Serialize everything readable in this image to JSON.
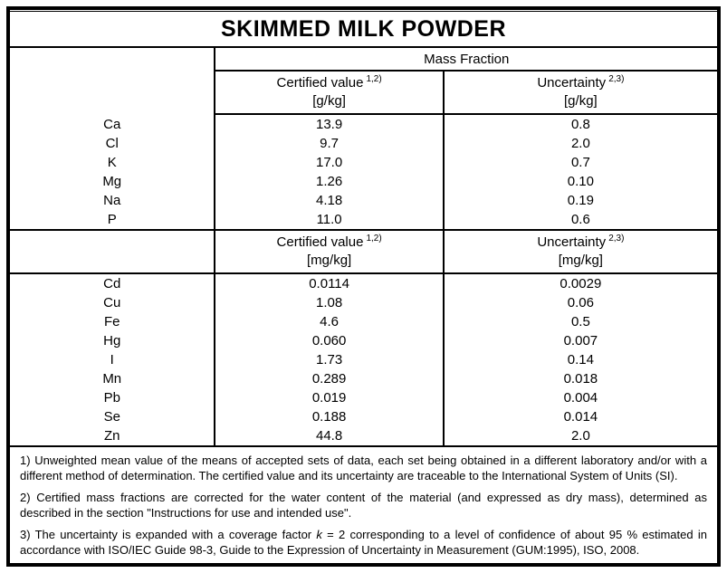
{
  "title": "SKIMMED MILK POWDER",
  "table": {
    "group_header": "Mass Fraction",
    "sections": [
      {
        "certified": {
          "label": "Certified value",
          "sup": "1,2)",
          "unit": "[g/kg]"
        },
        "uncertainty": {
          "label": "Uncertainty",
          "sup": "2,3)",
          "unit": "[g/kg]"
        },
        "rows": [
          {
            "element": "Ca",
            "certified": "13.9",
            "uncertainty": "0.8"
          },
          {
            "element": "Cl",
            "certified": "9.7",
            "uncertainty": "2.0"
          },
          {
            "element": "K",
            "certified": "17.0",
            "uncertainty": "0.7"
          },
          {
            "element": "Mg",
            "certified": "1.26",
            "uncertainty": "0.10"
          },
          {
            "element": "Na",
            "certified": "4.18",
            "uncertainty": "0.19"
          },
          {
            "element": "P",
            "certified": "11.0",
            "uncertainty": "0.6"
          }
        ]
      },
      {
        "certified": {
          "label": "Certified value",
          "sup": "1,2)",
          "unit": "[mg/kg]"
        },
        "uncertainty": {
          "label": "Uncertainty",
          "sup": "2,3)",
          "unit": "[mg/kg]"
        },
        "rows": [
          {
            "element": "Cd",
            "certified": "0.0114",
            "uncertainty": "0.0029"
          },
          {
            "element": "Cu",
            "certified": "1.08",
            "uncertainty": "0.06"
          },
          {
            "element": "Fe",
            "certified": "4.6",
            "uncertainty": "0.5"
          },
          {
            "element": "Hg",
            "certified": "0.060",
            "uncertainty": "0.007"
          },
          {
            "element": "I",
            "certified": "1.73",
            "uncertainty": "0.14"
          },
          {
            "element": "Mn",
            "certified": "0.289",
            "uncertainty": "0.018"
          },
          {
            "element": "Pb",
            "certified": "0.019",
            "uncertainty": "0.004"
          },
          {
            "element": "Se",
            "certified": "0.188",
            "uncertainty": "0.014"
          },
          {
            "element": "Zn",
            "certified": "44.8",
            "uncertainty": "2.0"
          }
        ]
      }
    ]
  },
  "footnotes": {
    "fn1": "1) Unweighted mean value of the means of accepted sets of data, each set being obtained in a different laboratory and/or with a different method of determination. The certified value and its uncertainty are traceable to the International System of Units (SI).",
    "fn2": "2) Certified mass fractions are corrected for the water content of the material (and expressed as dry mass), determined as described in the section \"Instructions for use and intended use\".",
    "fn3_pre": "3) The uncertainty is expanded with a coverage factor ",
    "fn3_k": "k",
    "fn3_post": " = 2 corresponding to a level of confidence of about 95 % estimated in accordance with ISO/IEC Guide 98-3, Guide to the Expression of Uncertainty in Measurement (GUM:1995), ISO, 2008."
  }
}
